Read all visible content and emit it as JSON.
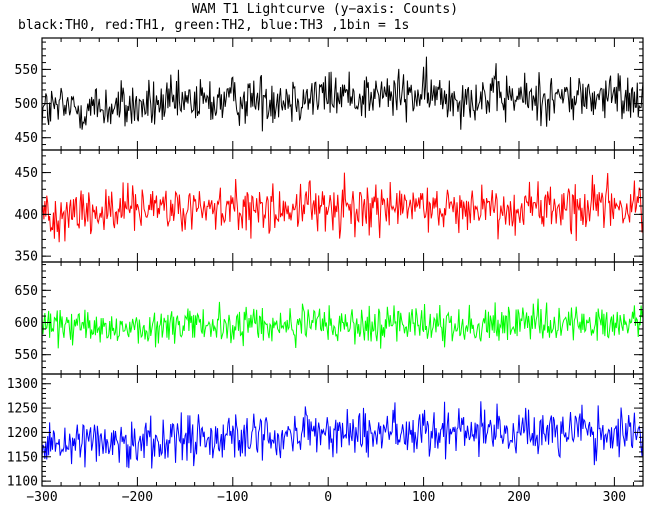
{
  "header": {
    "title": "WAM T1 Lightcurve (y−axis: Counts)",
    "subtitle": "black:TH0, red:TH1, green:TH2, blue:TH3 ,1bin = 1s"
  },
  "chart_data": {
    "type": "line",
    "x": {
      "range": [
        -300,
        330
      ],
      "ticks": [
        -300,
        -200,
        -100,
        0,
        100,
        200,
        300
      ]
    },
    "panels": [
      {
        "name": "TH0",
        "color": "#000000",
        "ylim": [
          432,
          596
        ],
        "yticks": [
          450,
          500,
          550
        ],
        "baseline": [
          [
            -300,
            492
          ],
          [
            -200,
            495
          ],
          [
            -100,
            505
          ],
          [
            0,
            512
          ],
          [
            100,
            512
          ],
          [
            200,
            508
          ],
          [
            330,
            510
          ]
        ],
        "noise": 22
      },
      {
        "name": "TH1",
        "color": "#ff0000",
        "ylim": [
          343,
          477
        ],
        "yticks": [
          350,
          400,
          450
        ],
        "baseline": [
          [
            -300,
            402
          ],
          [
            0,
            408
          ],
          [
            330,
            410
          ]
        ],
        "noise": 18
      },
      {
        "name": "TH2",
        "color": "#00ff00",
        "ylim": [
          520,
          694
        ],
        "yticks": [
          550,
          600,
          650
        ],
        "baseline": [
          [
            -300,
            592
          ],
          [
            0,
            596
          ],
          [
            330,
            598
          ]
        ],
        "noise": 18
      },
      {
        "name": "TH3",
        "color": "#0000ff",
        "ylim": [
          1090,
          1320
        ],
        "yticks": [
          1100,
          1150,
          1200,
          1250,
          1300
        ],
        "baseline": [
          [
            -300,
            1180
          ],
          [
            -100,
            1190
          ],
          [
            0,
            1198
          ],
          [
            100,
            1205
          ],
          [
            200,
            1205
          ],
          [
            330,
            1195
          ]
        ],
        "noise": 30
      }
    ]
  }
}
